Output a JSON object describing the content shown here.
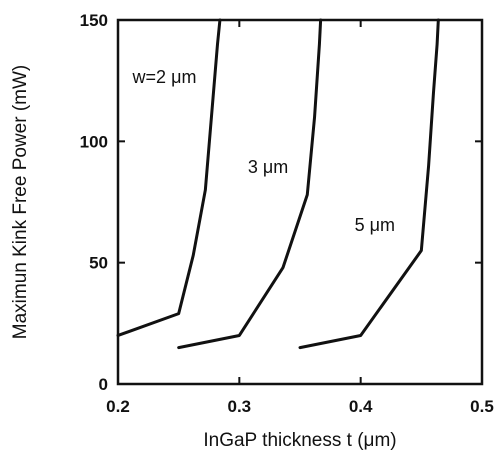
{
  "chart_data": {
    "type": "line",
    "title": "",
    "xlabel": "InGaP thickness  t (μm)",
    "ylabel": "Maximun Kink Free Power (mW)",
    "xlim": [
      0.2,
      0.5
    ],
    "ylim": [
      0,
      150
    ],
    "xticks": [
      0.2,
      0.3,
      0.4,
      0.5
    ],
    "yticks": [
      0,
      50,
      100,
      150
    ],
    "grid": false,
    "legend": "none",
    "series": [
      {
        "name": "w=2 μm",
        "x": [
          0.2,
          0.25,
          0.262,
          0.272,
          0.277,
          0.282,
          0.284
        ],
        "y": [
          20,
          29,
          53,
          80,
          110,
          140,
          150
        ]
      },
      {
        "name": "3 μm",
        "x": [
          0.25,
          0.3,
          0.336,
          0.356,
          0.362,
          0.366,
          0.367
        ],
        "y": [
          15,
          20,
          48,
          78,
          110,
          140,
          150
        ]
      },
      {
        "name": "5 μm",
        "x": [
          0.35,
          0.4,
          0.45,
          0.456,
          0.46,
          0.463,
          0.464
        ],
        "y": [
          15,
          20,
          55,
          90,
          120,
          140,
          150
        ]
      }
    ]
  }
}
